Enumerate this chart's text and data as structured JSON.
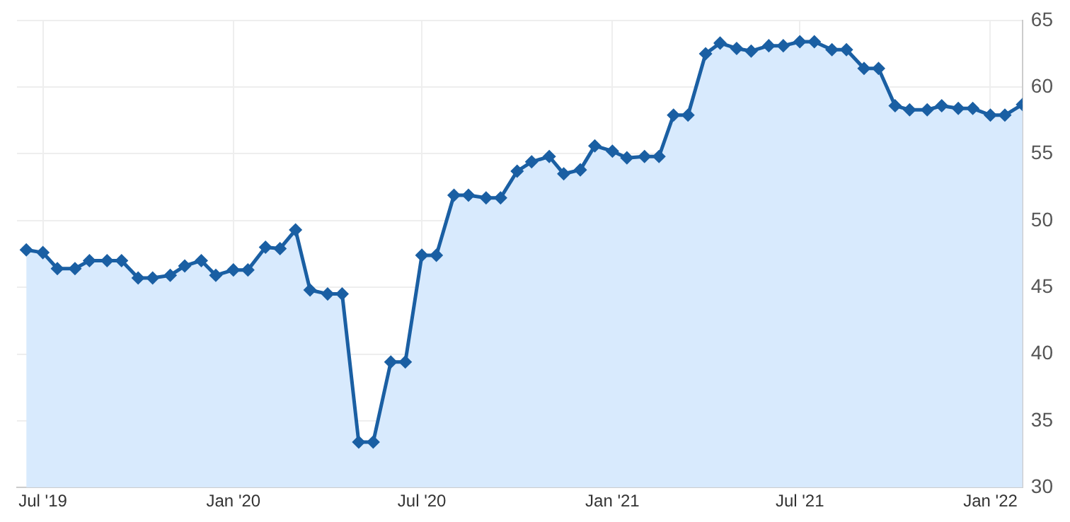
{
  "chart_data": {
    "type": "area",
    "x": [
      "2019-06-15",
      "2019-07-01",
      "2019-07-15",
      "2019-08-01",
      "2019-08-15",
      "2019-09-01",
      "2019-09-15",
      "2019-10-01",
      "2019-10-15",
      "2019-11-01",
      "2019-11-15",
      "2019-12-01",
      "2019-12-15",
      "2020-01-01",
      "2020-01-15",
      "2020-02-01",
      "2020-02-15",
      "2020-03-01",
      "2020-03-15",
      "2020-04-01",
      "2020-04-15",
      "2020-05-01",
      "2020-05-15",
      "2020-06-01",
      "2020-06-15",
      "2020-07-01",
      "2020-07-15",
      "2020-08-01",
      "2020-08-15",
      "2020-09-01",
      "2020-09-15",
      "2020-10-01",
      "2020-10-15",
      "2020-11-01",
      "2020-11-15",
      "2020-12-01",
      "2020-12-15",
      "2021-01-01",
      "2021-01-15",
      "2021-02-01",
      "2021-02-15",
      "2021-03-01",
      "2021-03-15",
      "2021-04-01",
      "2021-04-15",
      "2021-05-01",
      "2021-05-15",
      "2021-06-01",
      "2021-06-15",
      "2021-07-01",
      "2021-07-15",
      "2021-08-01",
      "2021-08-15",
      "2021-09-01",
      "2021-09-15",
      "2021-10-01",
      "2021-10-15",
      "2021-11-01",
      "2021-11-15",
      "2021-12-01",
      "2021-12-15",
      "2022-01-01",
      "2022-01-15",
      "2022-02-01"
    ],
    "series": [
      {
        "color": "#1a5fa3",
        "values": [
          47.8,
          47.6,
          46.4,
          46.4,
          47.0,
          47.0,
          47.0,
          45.7,
          45.7,
          45.9,
          46.6,
          47.0,
          45.9,
          46.3,
          46.3,
          48.0,
          47.9,
          49.3,
          44.8,
          44.5,
          44.5,
          33.4,
          33.4,
          39.4,
          39.4,
          47.4,
          47.4,
          51.9,
          51.9,
          51.7,
          51.7,
          53.7,
          54.4,
          54.8,
          53.5,
          53.8,
          55.6,
          55.2,
          54.7,
          54.8,
          54.8,
          57.9,
          57.9,
          62.5,
          63.3,
          62.9,
          62.7,
          63.1,
          63.1,
          63.4,
          63.4,
          62.8,
          62.8,
          61.4,
          61.4,
          58.6,
          58.3,
          58.3,
          58.6,
          58.4,
          58.4,
          57.9,
          57.9,
          58.7
        ]
      }
    ],
    "xlim": [
      "2019-06-06",
      "2022-02-01"
    ],
    "xticks": [
      {
        "value": "2019-07-01",
        "label": "Jul '19"
      },
      {
        "value": "2020-01-01",
        "label": "Jan '20"
      },
      {
        "value": "2020-07-01",
        "label": "Jul '20"
      },
      {
        "value": "2021-01-01",
        "label": "Jan '21"
      },
      {
        "value": "2021-07-01",
        "label": "Jul '21"
      },
      {
        "value": "2022-01-01",
        "label": "Jan '22"
      }
    ],
    "ylim": [
      30,
      65
    ],
    "yticks": [
      30,
      35,
      40,
      45,
      50,
      55,
      60,
      65
    ],
    "grid": true,
    "legend": false,
    "marker": "diamond",
    "line_style": "solid"
  }
}
